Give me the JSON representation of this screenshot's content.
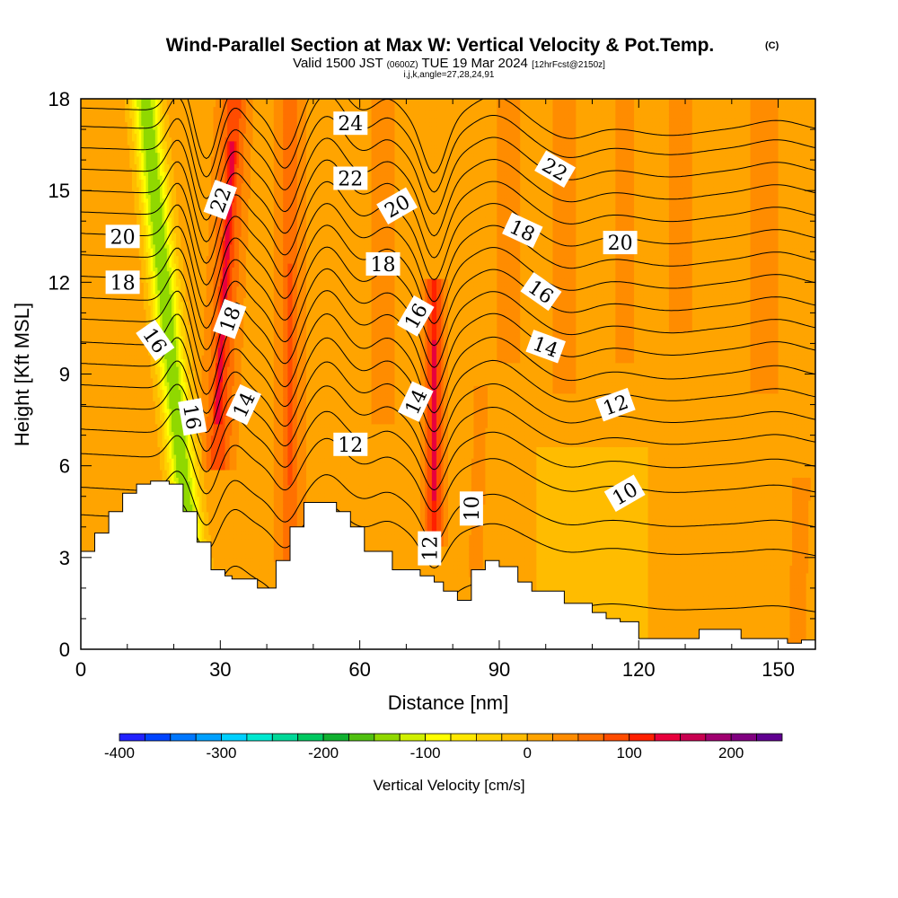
{
  "chart_data": {
    "type": "heatmap",
    "title": "Wind-Parallel Section at Max W: Vertical Velocity & Pot.Temp.",
    "title_mark": "(C)",
    "subtitle": {
      "pre": "Valid 1500 JST",
      "utc": "(0600Z)",
      "mid": "TUE 19 Mar 2024",
      "fcst": "[12hrFcst@2150z]"
    },
    "index_line": "i,j,k,angle=27,28,24,91",
    "xlabel": "Distance [nm]",
    "ylabel": "Height [Kft MSL]",
    "xlim": [
      0,
      158
    ],
    "ylim": [
      0,
      18
    ],
    "x_ticks": [
      0,
      30,
      60,
      90,
      120,
      150
    ],
    "y_ticks": [
      0,
      3,
      6,
      9,
      12,
      15,
      18
    ],
    "colorbar": {
      "label": "Vertical Velocity [cm/s]",
      "range": [
        -400,
        250
      ],
      "step": 25,
      "tick_values": [
        -400,
        -300,
        -200,
        -100,
        0,
        100,
        200
      ],
      "colors": [
        "#2222ff",
        "#0044ff",
        "#0077ff",
        "#00a0ff",
        "#00d0ff",
        "#00e8d0",
        "#00d898",
        "#00c860",
        "#10b030",
        "#50c010",
        "#90d800",
        "#d0f000",
        "#ffff00",
        "#ffe800",
        "#ffd200",
        "#ffbc00",
        "#ffa400",
        "#ff8c00",
        "#ff7000",
        "#ff4c00",
        "#ff2000",
        "#e8003c",
        "#c80050",
        "#a00070",
        "#800080",
        "#600090"
      ]
    },
    "background_value": 15,
    "vertical_velocity_features": [
      {
        "x0": 24,
        "y0": 2.5,
        "x1": 14,
        "y1": 17.8,
        "width": 3.5,
        "value": -150
      },
      {
        "x0": 22,
        "y0": 5,
        "x1": 14,
        "y1": 15.2,
        "width": 1.5,
        "value": -100
      },
      {
        "x0": 29.5,
        "y0": 6.5,
        "x1": 33,
        "y1": 17.9,
        "width": 3.5,
        "value": 90
      },
      {
        "x0": 29.5,
        "y0": 8,
        "x1": 32.5,
        "y1": 16,
        "width": 1.5,
        "value": 140
      },
      {
        "x0": 45,
        "y0": 3.5,
        "x1": 45,
        "y1": 17.9,
        "width": 3,
        "value": 70
      },
      {
        "x0": 45,
        "y0": 6,
        "x1": 45,
        "y1": 12,
        "width": 1.5,
        "value": 100
      },
      {
        "x0": 76,
        "y0": 4,
        "x1": 76,
        "y1": 11.5,
        "width": 2.5,
        "value": 110
      },
      {
        "x0": 76,
        "y0": 5.5,
        "x1": 76,
        "y1": 9.5,
        "width": 1.3,
        "value": 150
      },
      {
        "x0": 14,
        "y0": 9,
        "x1": 14,
        "y1": 17.5,
        "width": 4,
        "value": 10
      },
      {
        "x0": 38,
        "y0": 8,
        "x1": 38,
        "y1": 17.9,
        "width": 3,
        "value": 10
      },
      {
        "x0": 65,
        "y0": 8,
        "x1": 65,
        "y1": 17.9,
        "width": 2.5,
        "value": 50
      },
      {
        "x0": 92,
        "y0": 10,
        "x1": 92,
        "y1": 17.9,
        "width": 3,
        "value": 45
      },
      {
        "x0": 104,
        "y0": 9,
        "x1": 104,
        "y1": 17.9,
        "width": 3,
        "value": 40
      },
      {
        "x0": 117,
        "y0": 10,
        "x1": 117,
        "y1": 17.9,
        "width": 3,
        "value": 35
      },
      {
        "x0": 129,
        "y0": 11,
        "x1": 129,
        "y1": 17.9,
        "width": 3,
        "value": 40
      },
      {
        "x0": 147,
        "y0": 9,
        "x1": 147,
        "y1": 17.9,
        "width": 4,
        "value": 40
      },
      {
        "x0": 110,
        "y0": 0.5,
        "x1": 110,
        "y1": 6,
        "width": 20,
        "value": -10
      },
      {
        "x0": 85,
        "y0": 3,
        "x1": 86,
        "y1": 8,
        "width": 2,
        "value": 35
      },
      {
        "x0": 154,
        "y0": 0.3,
        "x1": 155,
        "y1": 5,
        "width": 2,
        "value": 45
      },
      {
        "x0": 52,
        "y0": 2,
        "x1": 52,
        "y1": 5,
        "width": 4,
        "value": 5
      }
    ],
    "terrain": [
      [
        0,
        0
      ],
      [
        0,
        3.2
      ],
      [
        3,
        3.2
      ],
      [
        3,
        3.8
      ],
      [
        6,
        3.8
      ],
      [
        6,
        4.5
      ],
      [
        9,
        4.5
      ],
      [
        9,
        5.1
      ],
      [
        12,
        5.1
      ],
      [
        12,
        5.4
      ],
      [
        15,
        5.4
      ],
      [
        15,
        5.5
      ],
      [
        19,
        5.5
      ],
      [
        19,
        5.4
      ],
      [
        22,
        5.4
      ],
      [
        22,
        4.5
      ],
      [
        25,
        4.5
      ],
      [
        25,
        3.5
      ],
      [
        28,
        3.5
      ],
      [
        28,
        2.6
      ],
      [
        31,
        2.6
      ],
      [
        31,
        2.4
      ],
      [
        32.5,
        2.4
      ],
      [
        32.5,
        2.3
      ],
      [
        38,
        2.3
      ],
      [
        38,
        2.0
      ],
      [
        42,
        2.0
      ],
      [
        42,
        2.9
      ],
      [
        45,
        2.9
      ],
      [
        45,
        4.0
      ],
      [
        48,
        4.0
      ],
      [
        48,
        4.8
      ],
      [
        55,
        4.8
      ],
      [
        55,
        4.5
      ],
      [
        58,
        4.5
      ],
      [
        58,
        4.0
      ],
      [
        61,
        4.0
      ],
      [
        61,
        3.2
      ],
      [
        67,
        3.2
      ],
      [
        67,
        2.6
      ],
      [
        73,
        2.6
      ],
      [
        73,
        2.4
      ],
      [
        76,
        2.4
      ],
      [
        76,
        2.2
      ],
      [
        78,
        2.2
      ],
      [
        78,
        1.9
      ],
      [
        81,
        1.9
      ],
      [
        81,
        1.6
      ],
      [
        84,
        1.6
      ],
      [
        84,
        2.6
      ],
      [
        87,
        2.6
      ],
      [
        87,
        2.9
      ],
      [
        90,
        2.9
      ],
      [
        90,
        2.7
      ],
      [
        94,
        2.7
      ],
      [
        94,
        2.2
      ],
      [
        97,
        2.2
      ],
      [
        97,
        1.9
      ],
      [
        104,
        1.9
      ],
      [
        104,
        1.5
      ],
      [
        110,
        1.5
      ],
      [
        110,
        1.2
      ],
      [
        113,
        1.2
      ],
      [
        113,
        1.0
      ],
      [
        116,
        1.0
      ],
      [
        116,
        0.9
      ],
      [
        120,
        0.9
      ],
      [
        120,
        0.35
      ],
      [
        133,
        0.35
      ],
      [
        133,
        0.65
      ],
      [
        142,
        0.65
      ],
      [
        142,
        0.35
      ],
      [
        152,
        0.35
      ],
      [
        152,
        0.2
      ],
      [
        155,
        0.2
      ],
      [
        155,
        0.3
      ],
      [
        158,
        0.3
      ],
      [
        158,
        0
      ]
    ],
    "theta_contours": {
      "base": [
        2.6,
        4.4,
        5.3,
        6.4,
        7.2,
        7.95,
        8.65,
        9.35,
        10.05,
        10.8,
        11.5,
        12.2,
        12.9,
        13.6,
        14.3,
        15.0,
        15.7,
        16.4,
        17.1,
        17.7
      ],
      "perturbations": [
        {
          "x": 21,
          "dy": 1.1,
          "w": 3.2
        },
        {
          "x": 27,
          "dy": -1.6,
          "w": 3.2
        },
        {
          "x": 33,
          "dy": 0.8,
          "w": 3.5
        },
        {
          "x": 44,
          "dy": -1.2,
          "w": 3.5
        },
        {
          "x": 53,
          "dy": 1.3,
          "w": 5
        },
        {
          "x": 66,
          "dy": 0.6,
          "w": 4
        },
        {
          "x": 76,
          "dy": -1.8,
          "w": 3.5
        },
        {
          "x": 89,
          "dy": 0.8,
          "w": 7
        },
        {
          "x": 105,
          "dy": -0.5,
          "w": 7
        },
        {
          "x": 126,
          "dy": -0.3,
          "w": 10
        },
        {
          "x": 150,
          "dy": 0.3,
          "w": 7
        }
      ],
      "slope": -0.009
    },
    "contour_labels": [
      {
        "text": "24",
        "x": 58,
        "y": 17.2,
        "angle": 0
      },
      {
        "text": "22",
        "x": 58,
        "y": 15.4,
        "angle": 0
      },
      {
        "text": "22",
        "x": 102,
        "y": 15.7,
        "angle": 30
      },
      {
        "text": "22",
        "x": 30,
        "y": 14.7,
        "angle": -70
      },
      {
        "text": "20",
        "x": 9,
        "y": 13.5,
        "angle": 0
      },
      {
        "text": "20",
        "x": 68,
        "y": 14.5,
        "angle": -30
      },
      {
        "text": "20",
        "x": 116,
        "y": 13.3,
        "angle": 0
      },
      {
        "text": "18",
        "x": 9,
        "y": 12.0,
        "angle": 0
      },
      {
        "text": "18",
        "x": 65,
        "y": 12.6,
        "angle": 0
      },
      {
        "text": "18",
        "x": 95,
        "y": 13.7,
        "angle": 25
      },
      {
        "text": "18",
        "x": 32,
        "y": 10.8,
        "angle": -70
      },
      {
        "text": "16",
        "x": 16,
        "y": 10.1,
        "angle": 55
      },
      {
        "text": "16",
        "x": 72,
        "y": 10.9,
        "angle": -60
      },
      {
        "text": "16",
        "x": 99,
        "y": 11.7,
        "angle": 35
      },
      {
        "text": "16",
        "x": 24,
        "y": 7.6,
        "angle": 80
      },
      {
        "text": "14",
        "x": 35,
        "y": 8.0,
        "angle": -65
      },
      {
        "text": "14",
        "x": 72,
        "y": 8.1,
        "angle": -65
      },
      {
        "text": "14",
        "x": 100,
        "y": 9.9,
        "angle": 20
      },
      {
        "text": "12",
        "x": 58,
        "y": 6.7,
        "angle": 0
      },
      {
        "text": "12",
        "x": 115,
        "y": 8.0,
        "angle": -20
      },
      {
        "text": "12",
        "x": 75,
        "y": 3.3,
        "angle": -90
      },
      {
        "text": "10",
        "x": 84,
        "y": 4.6,
        "angle": -90
      },
      {
        "text": "10",
        "x": 117,
        "y": 5.1,
        "angle": -30
      }
    ]
  }
}
